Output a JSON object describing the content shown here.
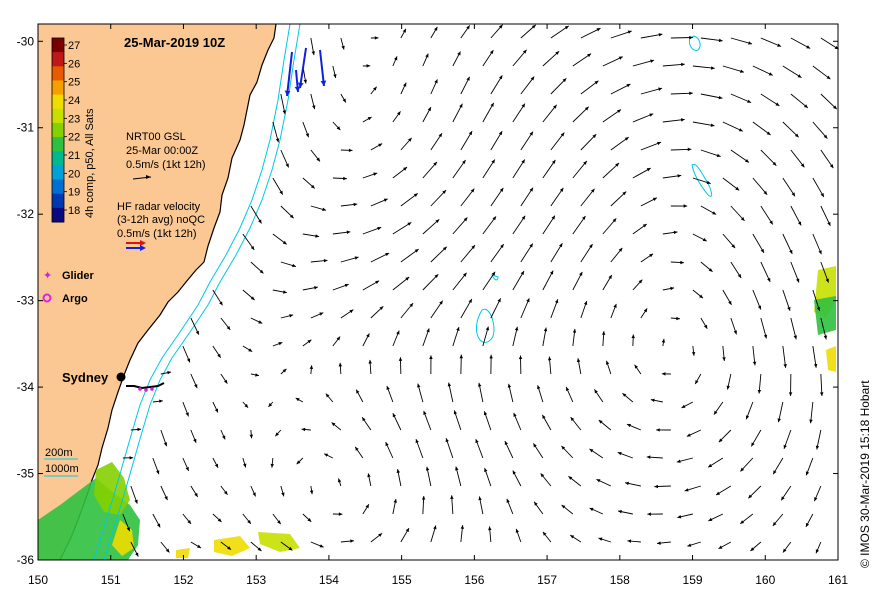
{
  "title": "25-Mar-2019 10Z",
  "colorbar": {
    "label": "4h comp, p50, All Sats",
    "ticks": [
      "27",
      "26",
      "25",
      "24",
      "23",
      "22",
      "21",
      "20",
      "19",
      "18"
    ],
    "colors": [
      "#7a0000",
      "#c01818",
      "#e85a00",
      "#f5a000",
      "#f0dc00",
      "#c8e000",
      "#84d000",
      "#30c040",
      "#00b890",
      "#00a0d8",
      "#0070d0",
      "#0038b0",
      "#0a0a80"
    ]
  },
  "legend": {
    "gsl_title": "NRT00 GSL",
    "gsl_time": "25-Mar 00:00Z",
    "gsl_scale": "0.5m/s (1kt 12h)",
    "radar_title": "HF radar velocity",
    "radar_sub": "(3-12h avg) noQC",
    "radar_scale": "0.5m/s (1kt 12h)",
    "glider": "Glider",
    "argo": "Argo",
    "iso200": "200m",
    "iso1000": "1000m"
  },
  "city": "Sydney",
  "credit": "© IMOS 30-Mar-2019 15:18 Hobart",
  "axes": {
    "x_ticks": [
      "150",
      "151",
      "152",
      "153",
      "154",
      "155",
      "156",
      "157",
      "158",
      "159",
      "160",
      "161"
    ],
    "y_ticks": [
      "-30",
      "-31",
      "-32",
      "-33",
      "-34",
      "-35",
      "-36"
    ],
    "lon_range": [
      150,
      161
    ],
    "lat_range": [
      -36,
      -29.8
    ]
  },
  "colors": {
    "land": "#fbc893",
    "coast": "#000000",
    "isobath": "#00c8e6",
    "arrow": "#000000",
    "glider": "#d020d0",
    "argo": "#e020e0",
    "radar_red": "#e01010",
    "radar_blue": "#1020e0"
  }
}
